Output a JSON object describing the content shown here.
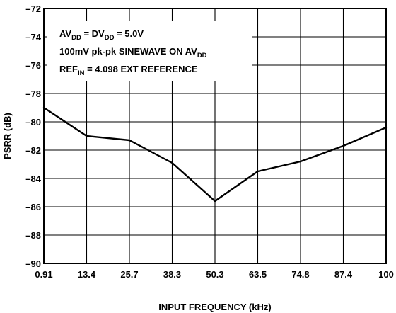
{
  "chart_data": {
    "type": "line",
    "title": "",
    "xlabel": "INPUT FREQUENCY (kHz)",
    "ylabel": "PSRR (dB)",
    "x_scale": "categorical",
    "categories": [
      "0.91",
      "13.4",
      "25.7",
      "38.3",
      "50.3",
      "63.5",
      "74.8",
      "87.4",
      "100"
    ],
    "ylim": [
      -90,
      -72
    ],
    "y_ticks": [
      -72,
      -74,
      -76,
      -78,
      -80,
      -82,
      -84,
      -86,
      -88,
      -90
    ],
    "y_tick_labels": [
      "–72",
      "–74",
      "–76",
      "–78",
      "–80",
      "–82",
      "–84",
      "–86",
      "–88",
      "–90"
    ],
    "grid": true,
    "series": [
      {
        "values": [
          -79.0,
          -81.0,
          -81.3,
          -82.9,
          -85.6,
          -83.5,
          -82.8,
          -81.7,
          -80.4
        ]
      }
    ],
    "annotation": {
      "line1": {
        "a": "AV",
        "a_sub": "DD",
        "b": " = DV",
        "b_sub": "DD",
        "c": " = 5.0V"
      },
      "line2": {
        "a": "100mV pk-pk SINEWAVE ON AV",
        "a_sub": "DD"
      },
      "line3": {
        "a": "REF",
        "a_sub": "IN",
        "b": " = 4.098 EXT REFERENCE"
      }
    }
  }
}
